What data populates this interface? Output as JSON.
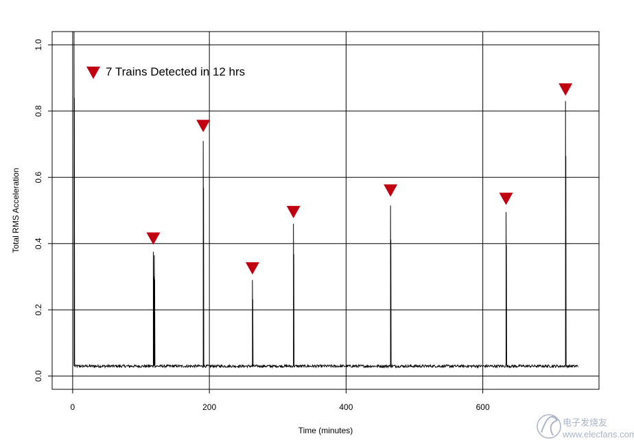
{
  "chart_data": {
    "type": "line",
    "title": "",
    "xlabel": "Time (minutes)",
    "ylabel": "Total RMS Acceleration",
    "xlim": [
      -30,
      770
    ],
    "ylim": [
      -0.04,
      1.04
    ],
    "x_ticks": [
      0,
      200,
      400,
      600
    ],
    "y_ticks": [
      0.0,
      0.2,
      0.4,
      0.6,
      0.8,
      1.0
    ],
    "x_tick_labels": [
      "0",
      "200",
      "400",
      "600"
    ],
    "y_tick_labels": [
      "0.0",
      "0.2",
      "0.4",
      "0.6",
      "0.8",
      "1.0"
    ],
    "grid": true,
    "baseline": 0.03,
    "series_extent": [
      2,
      740
    ],
    "spikes": [
      {
        "x": 2,
        "peak": 1.05
      },
      {
        "x": 118,
        "peak": 0.375
      },
      {
        "x": 119.5,
        "peak": 0.365
      },
      {
        "x": 191,
        "peak": 0.71
      },
      {
        "x": 263,
        "peak": 0.29
      },
      {
        "x": 323,
        "peak": 0.46
      },
      {
        "x": 465,
        "peak": 0.515
      },
      {
        "x": 634,
        "peak": 0.495
      },
      {
        "x": 721,
        "peak": 0.83
      }
    ],
    "markers": [
      {
        "x": 118,
        "y": 0.415
      },
      {
        "x": 191,
        "y": 0.755
      },
      {
        "x": 263,
        "y": 0.325
      },
      {
        "x": 323,
        "y": 0.495
      },
      {
        "x": 465,
        "y": 0.56
      },
      {
        "x": 634,
        "y": 0.535
      },
      {
        "x": 721,
        "y": 0.865
      }
    ],
    "legend": {
      "label": "7 Trains Detected in 12 hrs",
      "position": "top-left"
    },
    "colors": {
      "line": "#000000",
      "marker": "#c00010",
      "grid": "#000000"
    }
  },
  "watermark": {
    "name": "电子发烧友",
    "url": "www.elecfans.com"
  }
}
